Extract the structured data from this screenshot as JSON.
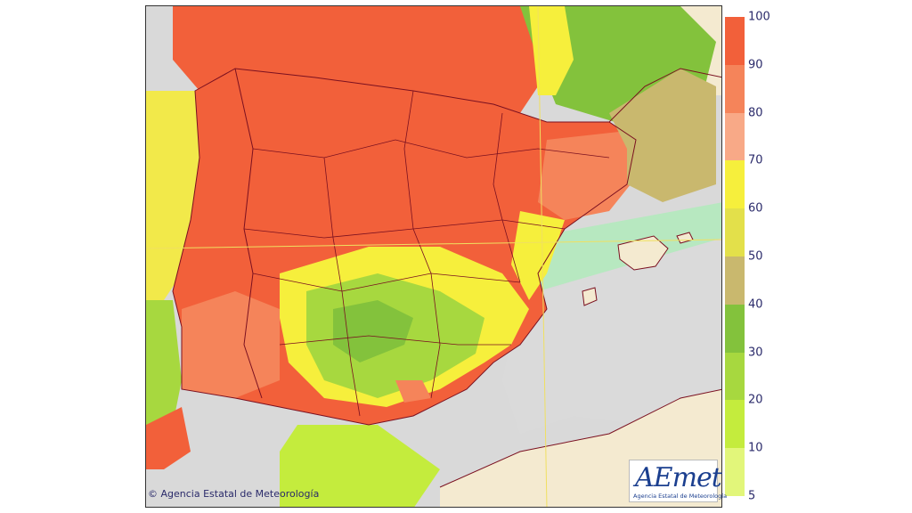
{
  "map": {
    "region": "Iberian Peninsula and Balearic Islands",
    "variable_levels": "relative scale 5–100"
  },
  "legend": {
    "ticks": [
      "100",
      "90",
      "80",
      "70",
      "60",
      "50",
      "40",
      "30",
      "20",
      "10",
      "5"
    ],
    "colors": [
      "#f2603a",
      "#f5845a",
      "#f8a987",
      "#f6ef3c",
      "#e3e04a",
      "#c9b86e",
      "#83c23c",
      "#a7d83f",
      "#c4ec3d",
      "#e2f67a",
      "#b7e8c0"
    ]
  },
  "footer": {
    "copyright": "© Agencia Estatal de Meteorología"
  },
  "logo": {
    "text": "AEmet",
    "subtext": "Agencia Estatal de Meteorología"
  }
}
